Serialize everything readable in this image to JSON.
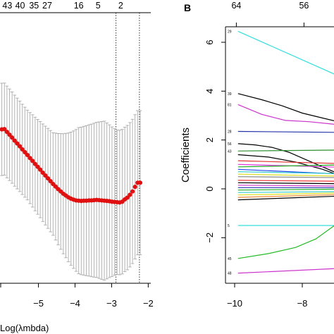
{
  "chart_data": [
    {
      "type": "scatter",
      "panel": "A",
      "xlabel": "Log(λmbda)",
      "xlim": [
        -6.05,
        -1.93
      ],
      "ylim": [
        0,
        1
      ],
      "top_axis_labels": [
        "43",
        "40",
        "35",
        "27",
        "16",
        "5",
        "2"
      ],
      "top_axis_x": [
        -5.85,
        -5.5,
        -5.12,
        -4.76,
        -3.9,
        -3.37,
        -2.75
      ],
      "x_ticks": [
        -5,
        -4,
        -3,
        -2
      ],
      "x_tick_labels": [
        "−5",
        "−4",
        "−3",
        "−2"
      ],
      "vlines": [
        -2.88,
        -2.24
      ],
      "cv_points": {
        "x": [
          -6.0,
          -5.93,
          -5.86,
          -5.79,
          -5.72,
          -5.65,
          -5.58,
          -5.51,
          -5.44,
          -5.37,
          -5.3,
          -5.23,
          -5.16,
          -5.09,
          -5.02,
          -4.95,
          -4.88,
          -4.81,
          -4.74,
          -4.67,
          -4.6,
          -4.53,
          -4.46,
          -4.39,
          -4.32,
          -4.25,
          -4.18,
          -4.11,
          -4.04,
          -3.97,
          -3.9,
          -3.83,
          -3.76,
          -3.69,
          -3.62,
          -3.55,
          -3.48,
          -3.41,
          -3.34,
          -3.27,
          -3.2,
          -3.13,
          -3.06,
          -2.99,
          -2.92,
          -2.85,
          -2.78,
          -2.71,
          -2.64,
          -2.57,
          -2.5,
          -2.43,
          -2.36,
          -2.29,
          -2.22
        ],
        "y": [
          0.6,
          0.601,
          0.59,
          0.579,
          0.568,
          0.556,
          0.545,
          0.534,
          0.522,
          0.511,
          0.5,
          0.488,
          0.477,
          0.465,
          0.454,
          0.443,
          0.431,
          0.42,
          0.409,
          0.398,
          0.387,
          0.377,
          0.367,
          0.358,
          0.349,
          0.342,
          0.335,
          0.33,
          0.326,
          0.323,
          0.322,
          0.321,
          0.322,
          0.322,
          0.323,
          0.323,
          0.324,
          0.325,
          0.324,
          0.323,
          0.322,
          0.321,
          0.32,
          0.318,
          0.317,
          0.316,
          0.315,
          0.318,
          0.327,
          0.334,
          0.345,
          0.358,
          0.376,
          0.392,
          0.392
        ]
      },
      "error_bar_halfwidth": {
        "x": [
          -6.0,
          -5.3,
          -4.6,
          -3.9,
          -3.2,
          -2.88,
          -2.22
        ],
        "y": [
          0.18,
          0.175,
          0.2,
          0.285,
          0.31,
          0.282,
          0.281
        ]
      }
    },
    {
      "type": "line",
      "panel": "B",
      "ylabel": "Coefficients",
      "xlim": [
        -10.05,
        -6.0
      ],
      "ylim": [
        -3.85,
        6.75
      ],
      "x_ticks": [
        -10,
        -8
      ],
      "x_tick_labels": [
        "−10",
        "−8"
      ],
      "y_ticks": [
        6,
        4,
        2,
        0,
        -2
      ],
      "y_tick_labels": [
        "6",
        "4",
        "2",
        "0",
        "−2"
      ],
      "top_axis_labels": [
        "64",
        "56"
      ],
      "top_axis_x": [
        -9.95,
        -7.95
      ],
      "series": [
        {
          "label": "29",
          "color": "#33dddd",
          "x": [
            -9.9,
            -6.0
          ],
          "y": [
            6.45,
            4.05
          ]
        },
        {
          "label": "39",
          "color": "#000000",
          "x": [
            -9.9,
            -9.2,
            -8.6,
            -8.0,
            -7.4,
            -6.8,
            -6.2,
            -6.0
          ],
          "y": [
            3.9,
            3.65,
            3.4,
            3.1,
            2.9,
            2.7,
            2.5,
            2.45
          ]
        },
        {
          "label": "81",
          "color": "#cc33cc",
          "x": [
            -9.9,
            -9.2,
            -8.5,
            -7.8,
            -7.1,
            -6.5,
            -6.0
          ],
          "y": [
            3.45,
            3.05,
            2.8,
            2.75,
            2.65,
            2.45,
            2.3
          ]
        },
        {
          "label": "28",
          "color": "#2233aa",
          "x": [
            -9.9,
            -6.0
          ],
          "y": [
            2.35,
            2.3
          ]
        },
        {
          "label": "56",
          "color": "#000000",
          "x": [
            -9.9,
            -9.4,
            -8.9,
            -8.4,
            -7.9,
            -7.4,
            -6.9,
            -6.4,
            -6.0
          ],
          "y": [
            1.85,
            1.8,
            1.7,
            1.5,
            1.2,
            0.9,
            0.6,
            0.4,
            0.3
          ]
        },
        {
          "label": "43",
          "color": "#2f8f2f",
          "x": [
            -9.9,
            -6.0
          ],
          "y": [
            1.55,
            1.6
          ]
        },
        {
          "label": "",
          "color": "#000000",
          "x": [
            -9.9,
            -9.0,
            -8.2,
            -7.4,
            -6.6,
            -6.0
          ],
          "y": [
            1.4,
            1.3,
            1.1,
            0.8,
            0.4,
            0.15
          ]
        },
        {
          "label": "",
          "color": "#dd3333",
          "x": [
            -9.9,
            -6.0
          ],
          "y": [
            1.15,
            1.0
          ]
        },
        {
          "label": "",
          "color": "#dd33dd",
          "x": [
            -9.9,
            -6.0
          ],
          "y": [
            1.0,
            0.85
          ]
        },
        {
          "label": "",
          "color": "#22aa22",
          "x": [
            -9.9,
            -6.0
          ],
          "y": [
            0.9,
            1.0
          ]
        },
        {
          "label": "",
          "color": "#2244ee",
          "x": [
            -9.9,
            -6.0
          ],
          "y": [
            0.8,
            0.55
          ]
        },
        {
          "label": "",
          "color": "#33cccc",
          "x": [
            -9.9,
            -6.0
          ],
          "y": [
            0.7,
            0.6
          ]
        },
        {
          "label": "",
          "color": "#dddd22",
          "x": [
            -9.9,
            -6.0
          ],
          "y": [
            0.6,
            0.5
          ]
        },
        {
          "label": "",
          "color": "#888888",
          "x": [
            -9.9,
            -6.0
          ],
          "y": [
            0.5,
            0.45
          ]
        },
        {
          "label": "",
          "color": "#ee3333",
          "x": [
            -9.9,
            -6.0
          ],
          "y": [
            0.35,
            0.3
          ]
        },
        {
          "label": "",
          "color": "#000000",
          "x": [
            -9.9,
            -6.0
          ],
          "y": [
            0.25,
            0.2
          ]
        },
        {
          "label": "",
          "color": "#cc33cc",
          "x": [
            -9.9,
            -6.0
          ],
          "y": [
            0.15,
            0.1
          ]
        },
        {
          "label": "",
          "color": "#2233aa",
          "x": [
            -9.9,
            -6.0
          ],
          "y": [
            0.05,
            0.05
          ]
        },
        {
          "label": "",
          "color": "#22aa22",
          "x": [
            -9.9,
            -6.0
          ],
          "y": [
            -0.05,
            0.0
          ]
        },
        {
          "label": "",
          "color": "#33cccc",
          "x": [
            -9.9,
            -6.0
          ],
          "y": [
            -0.15,
            -0.1
          ]
        },
        {
          "label": "",
          "color": "#dddd22",
          "x": [
            -9.9,
            -6.0
          ],
          "y": [
            -0.25,
            -0.15
          ]
        },
        {
          "label": "",
          "color": "#ee8833",
          "x": [
            -9.9,
            -6.0
          ],
          "y": [
            -0.35,
            -0.2
          ]
        },
        {
          "label": "",
          "color": "#000000",
          "x": [
            -9.9,
            -6.0
          ],
          "y": [
            -0.45,
            -0.25
          ]
        },
        {
          "label": "5",
          "color": "#33dddd",
          "x": [
            -9.9,
            -6.0
          ],
          "y": [
            -1.5,
            -1.5
          ]
        },
        {
          "label": "45",
          "color": "#22bb22",
          "x": [
            -9.9,
            -9.0,
            -8.2,
            -7.6,
            -7.0,
            -6.6,
            -6.3,
            -6.0
          ],
          "y": [
            -2.85,
            -2.65,
            -2.4,
            -2.05,
            -1.45,
            -0.9,
            -0.4,
            0.0
          ]
        },
        {
          "label": "48",
          "color": "#cc33cc",
          "x": [
            -9.9,
            -6.0
          ],
          "y": [
            -3.45,
            -3.2
          ]
        }
      ]
    }
  ],
  "panel_labels": {
    "b": "B"
  }
}
